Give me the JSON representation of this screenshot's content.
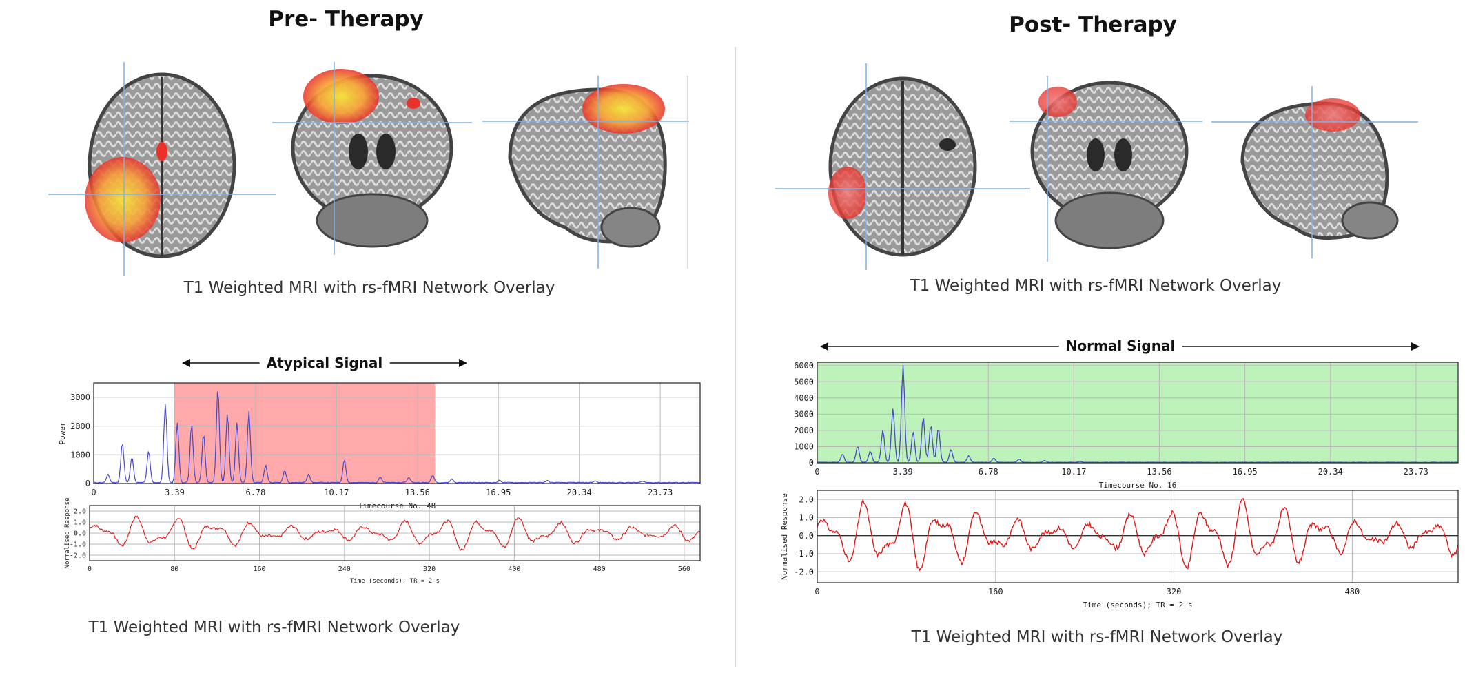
{
  "colors": {
    "highlight_pre": "#ffa9aa",
    "highlight_post": "#bdf3bb",
    "power_line": "#4a4ac8",
    "response_line": "#e01818",
    "crosshair": "#7fb0e6",
    "activation_core": "#f5e43a",
    "activation_edge": "#e8322a"
  },
  "icons": [
    "axial-brain-slice-icon",
    "coronal-brain-slice-icon",
    "sagittal-brain-slice-icon",
    "double-arrow-icon"
  ],
  "pre": {
    "title": "Pre- Therapy",
    "mri_caption": "T1 Weighted MRI with rs-fMRI Network Overlay",
    "signal_label": "Atypical Signal",
    "bottom_caption": "T1 Weighted MRI with rs-fMRI Network Overlay",
    "activation_intensity": "strong"
  },
  "post": {
    "title": "Post- Therapy",
    "mri_caption": "T1 Weighted MRI with rs-fMRI Network Overlay",
    "signal_label": "Normal Signal",
    "bottom_caption": "T1 Weighted MRI with rs-fMRI Network Overlay",
    "activation_intensity": "weak"
  },
  "chart_data": [
    {
      "id": "pre-power",
      "type": "line",
      "xlabel": "Timecourse No. 48",
      "ylabel": "Power",
      "xlim": [
        0,
        25.4
      ],
      "ylim": [
        0,
        3500
      ],
      "xticks": [
        0,
        3.39,
        6.78,
        10.17,
        13.56,
        16.95,
        20.34,
        23.73
      ],
      "yticks": [
        0,
        1000,
        2000,
        3000
      ],
      "highlight": [
        3.39,
        14.3
      ],
      "grid": true,
      "peaks": [
        [
          0.6,
          280
        ],
        [
          1.2,
          1400
        ],
        [
          1.6,
          900
        ],
        [
          2.3,
          1100
        ],
        [
          3.0,
          2750
        ],
        [
          3.5,
          2100
        ],
        [
          4.1,
          2050
        ],
        [
          4.6,
          1700
        ],
        [
          5.2,
          3300
        ],
        [
          5.6,
          2400
        ],
        [
          6.0,
          2100
        ],
        [
          6.5,
          2500
        ],
        [
          7.2,
          600
        ],
        [
          8.0,
          420
        ],
        [
          9.0,
          300
        ],
        [
          10.5,
          800
        ],
        [
          12.0,
          200
        ],
        [
          13.2,
          180
        ],
        [
          14.2,
          250
        ],
        [
          15.0,
          120
        ],
        [
          17.0,
          80
        ],
        [
          19.0,
          70
        ],
        [
          21.0,
          60
        ],
        [
          23.0,
          50
        ]
      ]
    },
    {
      "id": "pre-response",
      "type": "line",
      "xlabel": "Time (seconds); TR = 2 s",
      "ylabel": "Normalised Response",
      "xlim": [
        0,
        575
      ],
      "ylim": [
        -2.5,
        2.5
      ],
      "xticks": [
        0,
        80,
        160,
        240,
        320,
        400,
        480,
        560
      ],
      "yticks": [
        -2.0,
        -1.0,
        0.0,
        1.0,
        2.0
      ],
      "grid": true,
      "period": 36,
      "amplitude": 1.45
    },
    {
      "id": "post-power",
      "type": "line",
      "xlabel": "Timecourse No. 16",
      "ylabel": "Power",
      "xlim": [
        0,
        25.4
      ],
      "ylim": [
        0,
        6200
      ],
      "xticks": [
        0,
        3.39,
        6.78,
        10.17,
        13.56,
        16.95,
        20.34,
        23.73
      ],
      "yticks": [
        0,
        1000,
        2000,
        3000,
        4000,
        5000,
        6000
      ],
      "highlight": [
        0,
        25.4
      ],
      "grid": true,
      "peaks": [
        [
          1.0,
          500
        ],
        [
          1.6,
          1000
        ],
        [
          2.1,
          700
        ],
        [
          2.6,
          2000
        ],
        [
          3.0,
          3300
        ],
        [
          3.4,
          6000
        ],
        [
          3.8,
          1900
        ],
        [
          4.2,
          2800
        ],
        [
          4.5,
          2300
        ],
        [
          4.8,
          2100
        ],
        [
          5.3,
          800
        ],
        [
          6.0,
          400
        ],
        [
          7.0,
          250
        ],
        [
          8.0,
          200
        ],
        [
          9.0,
          120
        ],
        [
          10.4,
          60
        ]
      ]
    },
    {
      "id": "post-response",
      "type": "line",
      "xlabel": "Time (seconds); TR = 2 s",
      "ylabel": "Normalised Response",
      "xlim": [
        0,
        575
      ],
      "ylim": [
        -2.6,
        2.5
      ],
      "xticks": [
        0,
        160,
        320,
        480
      ],
      "yticks": [
        -2.0,
        -1.0,
        0.0,
        1.0,
        2.0
      ],
      "grid": true,
      "period": 34,
      "amplitude": 1.85
    }
  ]
}
